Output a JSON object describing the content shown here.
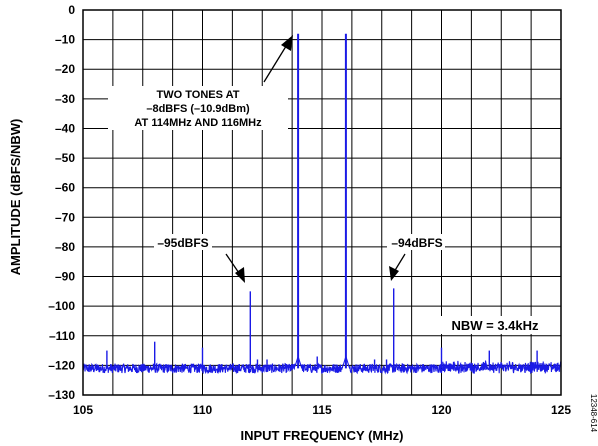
{
  "chart_data": {
    "type": "line",
    "xlabel": "INPUT FREQUENCY (MHz)",
    "ylabel": "AMPLITUDE (dBFS/NBW)",
    "xlim": [
      105,
      125
    ],
    "ylim": [
      -130,
      0
    ],
    "xticks": [
      105,
      110,
      115,
      120,
      125
    ],
    "yticks": [
      0,
      -10,
      -20,
      -30,
      -40,
      -50,
      -60,
      -70,
      -80,
      -90,
      -100,
      -110,
      -120,
      -130
    ],
    "ytick_labels": [
      "0",
      "–10",
      "–20",
      "–30",
      "–40",
      "–50",
      "–60",
      "–70",
      "–80",
      "–90",
      "–100",
      "–110",
      "–120",
      "–130"
    ],
    "grid": true,
    "noise_floor": -121,
    "series": [
      {
        "color": "#1a1ae6",
        "peaks": [
          {
            "x": 106,
            "y": -115
          },
          {
            "x": 108,
            "y": -112
          },
          {
            "x": 110,
            "y": -114
          },
          {
            "x": 112,
            "y": -95
          },
          {
            "x": 112.3,
            "y": -118
          },
          {
            "x": 112.7,
            "y": -118
          },
          {
            "x": 114,
            "y": -8
          },
          {
            "x": 114.8,
            "y": -117
          },
          {
            "x": 116,
            "y": -8
          },
          {
            "x": 117.2,
            "y": -118
          },
          {
            "x": 117.7,
            "y": -118
          },
          {
            "x": 118,
            "y": -94
          },
          {
            "x": 120,
            "y": -114
          },
          {
            "x": 122,
            "y": -115
          },
          {
            "x": 124,
            "y": -115
          }
        ]
      }
    ],
    "annotations": [
      {
        "lines": [
          "TWO TONES AT",
          "–8dBFS (–10.9dBm)",
          "AT 114MHz AND 116MHz"
        ],
        "arrow_target": {
          "x": 113.95,
          "y": -8
        }
      },
      {
        "lines": [
          "–95dBFS"
        ],
        "arrow_target": {
          "x": 111.95,
          "y": -95
        }
      },
      {
        "lines": [
          "–94dBFS"
        ],
        "arrow_target": {
          "x": 118.05,
          "y": -94
        }
      },
      {
        "lines": [
          "NBW = 3.4kHz"
        ]
      }
    ],
    "figure_id": "12348-614"
  }
}
